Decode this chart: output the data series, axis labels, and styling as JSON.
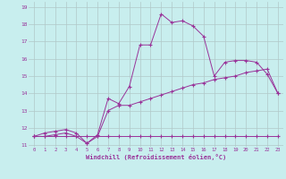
{
  "xlabel": "Windchill (Refroidissement éolien,°C)",
  "bg_color": "#c8eeee",
  "line_color": "#993399",
  "grid_color": "#b0c8c8",
  "ylim": [
    11,
    19
  ],
  "xlim": [
    -0.5,
    23.5
  ],
  "yticks": [
    11,
    12,
    13,
    14,
    15,
    16,
    17,
    18,
    19
  ],
  "xticks": [
    0,
    1,
    2,
    3,
    4,
    5,
    6,
    7,
    8,
    9,
    10,
    11,
    12,
    13,
    14,
    15,
    16,
    17,
    18,
    19,
    20,
    21,
    22,
    23
  ],
  "line1_x": [
    0,
    1,
    2,
    3,
    4,
    5,
    6,
    7,
    8,
    9,
    10,
    11,
    12,
    13,
    14,
    15,
    16,
    17,
    18,
    19,
    20,
    21,
    22,
    23
  ],
  "line1_y": [
    11.5,
    11.7,
    11.8,
    11.9,
    11.7,
    11.1,
    11.6,
    13.7,
    13.4,
    14.4,
    16.8,
    16.8,
    18.6,
    18.1,
    18.2,
    17.9,
    17.3,
    15.0,
    15.8,
    15.9,
    15.9,
    15.8,
    15.1,
    14.0
  ],
  "line2_x": [
    0,
    1,
    2,
    3,
    4,
    5,
    6,
    7,
    8,
    9,
    10,
    11,
    12,
    13,
    14,
    15,
    16,
    17,
    18,
    19,
    20,
    21,
    22,
    23
  ],
  "line2_y": [
    11.5,
    11.5,
    11.6,
    11.7,
    11.5,
    11.1,
    11.5,
    13.0,
    13.3,
    13.3,
    13.5,
    13.7,
    13.9,
    14.1,
    14.3,
    14.5,
    14.6,
    14.8,
    14.9,
    15.0,
    15.2,
    15.3,
    15.4,
    14.0
  ],
  "line3_x": [
    0,
    1,
    2,
    3,
    4,
    5,
    6,
    7,
    8,
    9,
    10,
    11,
    12,
    13,
    14,
    15,
    16,
    17,
    18,
    19,
    20,
    21,
    22,
    23
  ],
  "line3_y": [
    11.5,
    11.5,
    11.5,
    11.5,
    11.5,
    11.5,
    11.5,
    11.5,
    11.5,
    11.5,
    11.5,
    11.5,
    11.5,
    11.5,
    11.5,
    11.5,
    11.5,
    11.5,
    11.5,
    11.5,
    11.5,
    11.5,
    11.5,
    11.5
  ]
}
